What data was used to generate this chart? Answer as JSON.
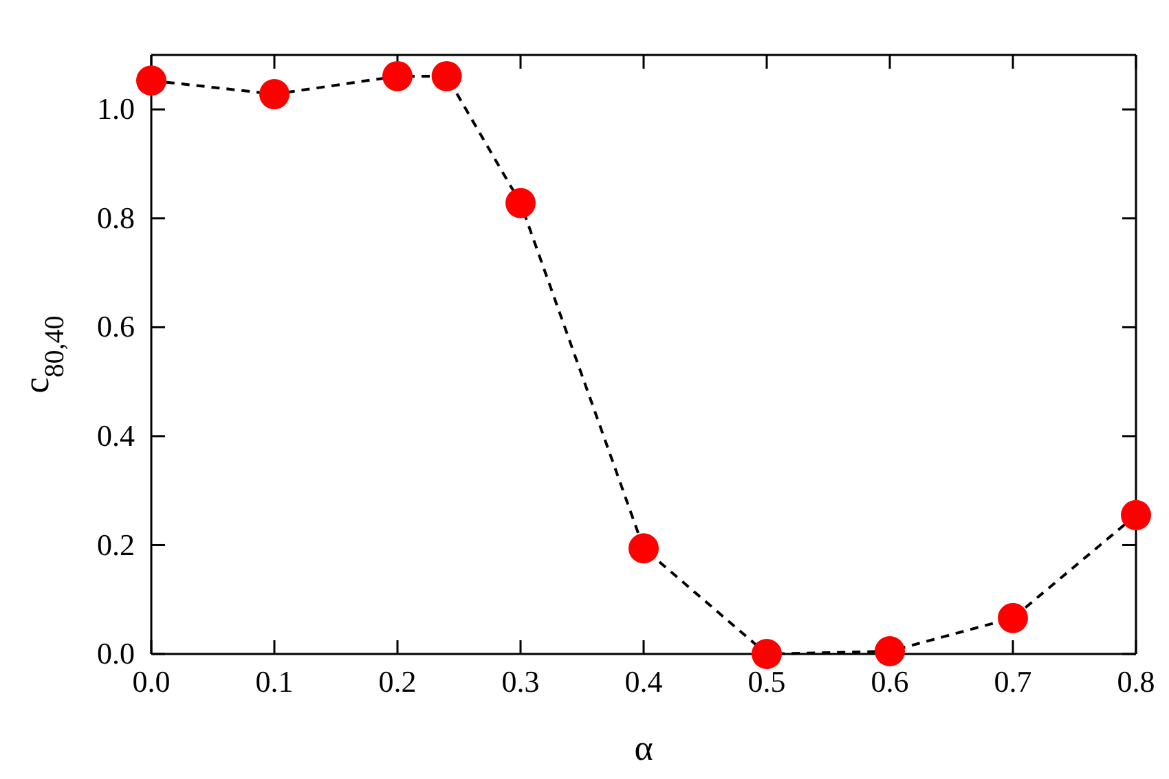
{
  "chart_data": {
    "type": "line",
    "xlabel": "α",
    "ylabel": "c$_{80,40}$",
    "x": [
      0.0,
      0.1,
      0.2,
      0.24,
      0.3,
      0.4,
      0.5,
      0.6,
      0.7,
      0.8
    ],
    "series": [
      {
        "color": "#ff0000",
        "values": [
          1.053,
          1.028,
          1.061,
          1.061,
          0.828,
          0.194,
          0.0,
          0.005,
          0.066,
          0.255
        ]
      }
    ],
    "xlim": [
      0,
      0.8
    ],
    "ylim": [
      0,
      1.1
    ],
    "xticks": [
      {
        "value": 0,
        "label": "0.0"
      },
      0.1,
      0.2,
      0.3,
      0.4,
      0.5,
      0.6,
      0.7,
      0.8
    ],
    "yticks": [
      {
        "value": 0,
        "label": "0.0"
      },
      0.2,
      0.4,
      0.6,
      0.8,
      {
        "value": 1,
        "label": "1.0"
      }
    ],
    "marker": "circle",
    "line_style": "dashed",
    "grid": false
  }
}
